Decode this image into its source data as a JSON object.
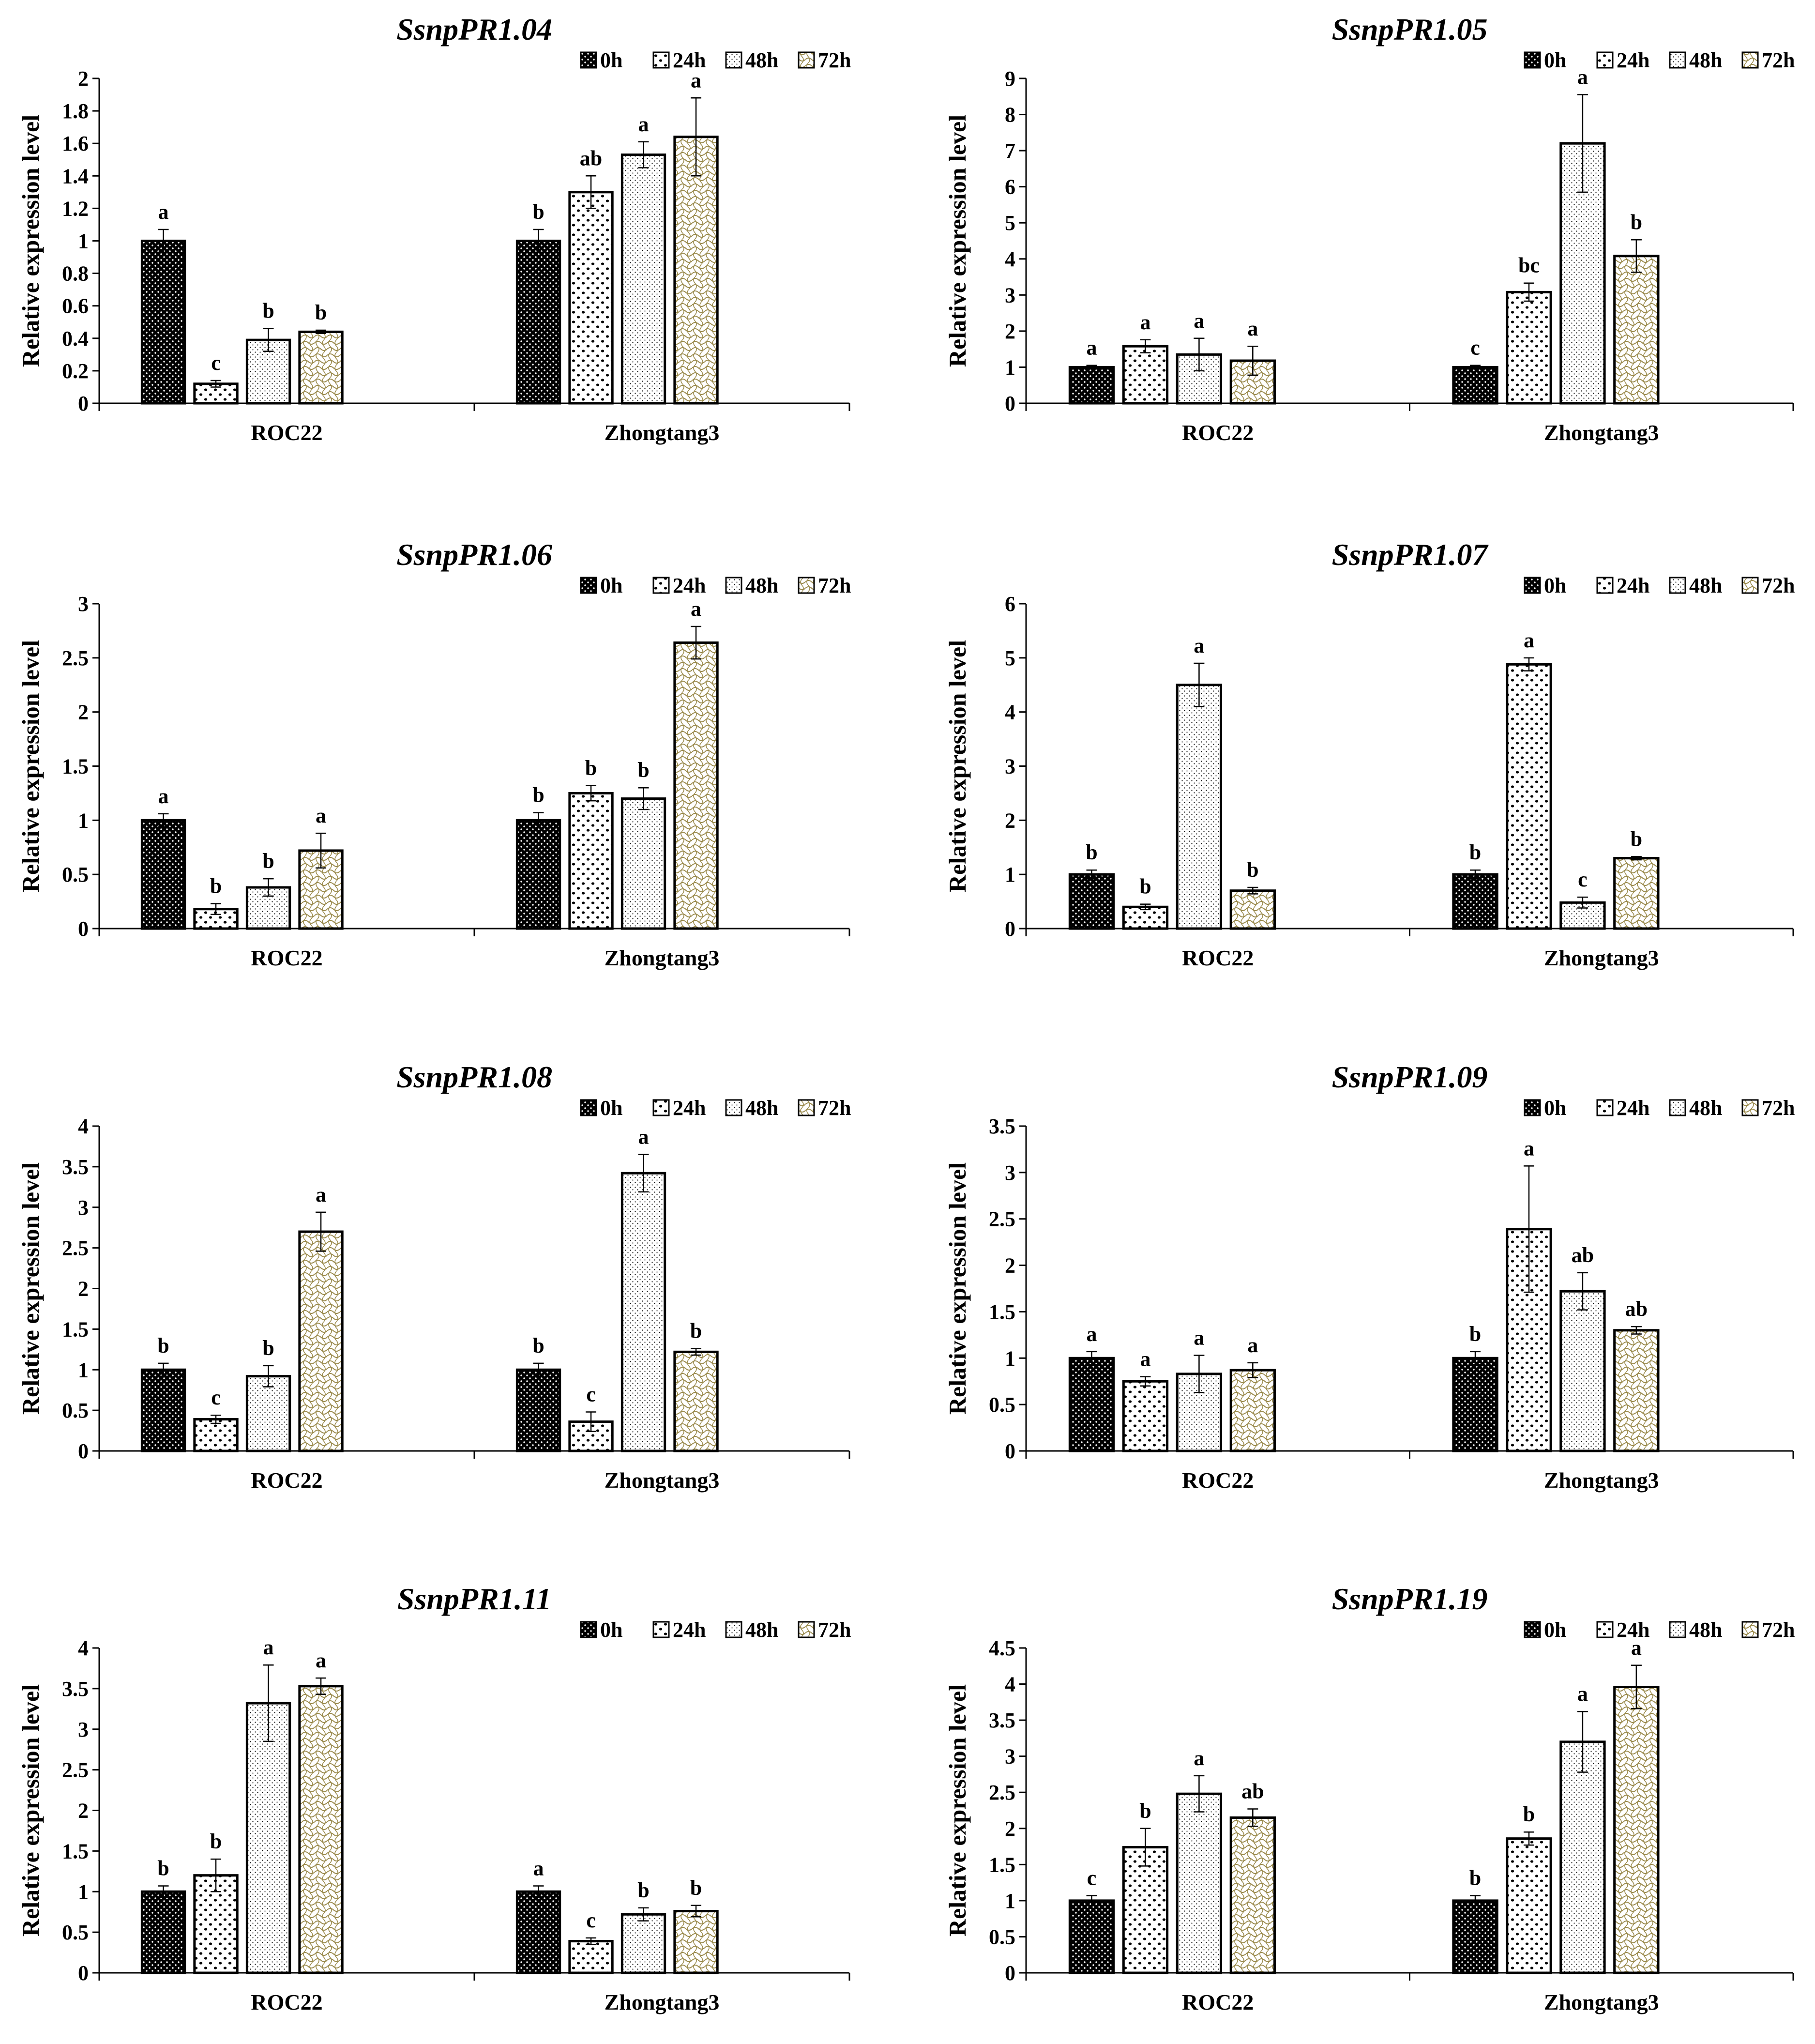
{
  "figure": {
    "series_names": [
      "0h",
      "24h",
      "48h",
      "72h"
    ],
    "patterns": [
      "dense-dots",
      "leopard-dots",
      "fine-dots",
      "wave-lattice"
    ],
    "colors": {
      "bar_outline": "#000000",
      "pattern_ink": "#000000",
      "wave_ink": "#9a8a4c",
      "background": "#ffffff"
    }
  },
  "chart_data": [
    {
      "type": "bar",
      "title": "SsnpPR1.04",
      "xlabel": "",
      "ylabel": "Relative expression level",
      "categories": [
        "ROC22",
        "Zhongtang3"
      ],
      "ylim": [
        0,
        2
      ],
      "yticks": [
        "0",
        "0.2",
        "0.4",
        "0.6",
        "0.8",
        "1",
        "1.2",
        "1.4",
        "1.6",
        "1.8",
        "2"
      ],
      "legend": "top-right",
      "series": [
        {
          "name": "0h",
          "values": [
            1.0,
            1.0
          ],
          "errors": [
            0.07,
            0.07
          ],
          "labels": [
            "a",
            "b"
          ]
        },
        {
          "name": "24h",
          "values": [
            0.12,
            1.3
          ],
          "errors": [
            0.02,
            0.1
          ],
          "labels": [
            "c",
            "ab"
          ]
        },
        {
          "name": "48h",
          "values": [
            0.39,
            1.53
          ],
          "errors": [
            0.07,
            0.08
          ],
          "labels": [
            "b",
            "a"
          ]
        },
        {
          "name": "72h",
          "values": [
            0.44,
            1.64
          ],
          "errors": [
            0.01,
            0.24
          ],
          "labels": [
            "b",
            "a"
          ]
        }
      ]
    },
    {
      "type": "bar",
      "title": "SsnpPR1.05",
      "xlabel": "",
      "ylabel": "Relative expression level",
      "categories": [
        "ROC22",
        "Zhongtang3"
      ],
      "ylim": [
        0,
        9
      ],
      "yticks": [
        "0",
        "1",
        "2",
        "3",
        "4",
        "5",
        "6",
        "7",
        "8",
        "9"
      ],
      "legend": "top-right",
      "series": [
        {
          "name": "0h",
          "values": [
            1.0,
            1.0
          ],
          "errors": [
            0.05,
            0.05
          ],
          "labels": [
            "a",
            "c"
          ]
        },
        {
          "name": "24h",
          "values": [
            1.58,
            3.08
          ],
          "errors": [
            0.18,
            0.25
          ],
          "labels": [
            "a",
            "bc"
          ]
        },
        {
          "name": "48h",
          "values": [
            1.35,
            7.2
          ],
          "errors": [
            0.45,
            1.35
          ],
          "labels": [
            "a",
            "a"
          ]
        },
        {
          "name": "72h",
          "values": [
            1.18,
            4.08
          ],
          "errors": [
            0.4,
            0.45
          ],
          "labels": [
            "a",
            "b"
          ]
        }
      ]
    },
    {
      "type": "bar",
      "title": "SsnpPR1.06",
      "xlabel": "",
      "ylabel": "Relative expression level",
      "categories": [
        "ROC22",
        "Zhongtang3"
      ],
      "ylim": [
        0,
        3
      ],
      "yticks": [
        "0",
        "0.5",
        "1",
        "1.5",
        "2",
        "2.5",
        "3"
      ],
      "legend": "top-right",
      "series": [
        {
          "name": "0h",
          "values": [
            1.0,
            1.0
          ],
          "errors": [
            0.06,
            0.07
          ],
          "labels": [
            "a",
            "b"
          ]
        },
        {
          "name": "24h",
          "values": [
            0.18,
            1.25
          ],
          "errors": [
            0.05,
            0.07
          ],
          "labels": [
            "b",
            "b"
          ]
        },
        {
          "name": "48h",
          "values": [
            0.38,
            1.2
          ],
          "errors": [
            0.08,
            0.1
          ],
          "labels": [
            "b",
            "b"
          ]
        },
        {
          "name": "72h",
          "values": [
            0.72,
            2.64
          ],
          "errors": [
            0.16,
            0.15
          ],
          "labels": [
            "a",
            "a"
          ]
        }
      ]
    },
    {
      "type": "bar",
      "title": "SsnpPR1.07",
      "xlabel": "",
      "ylabel": "Relative expression level",
      "categories": [
        "ROC22",
        "Zhongtang3"
      ],
      "ylim": [
        0,
        6
      ],
      "yticks": [
        "0",
        "1",
        "2",
        "3",
        "4",
        "5",
        "6"
      ],
      "legend": "top-right",
      "series": [
        {
          "name": "0h",
          "values": [
            1.0,
            1.0
          ],
          "errors": [
            0.08,
            0.08
          ],
          "labels": [
            "b",
            "b"
          ]
        },
        {
          "name": "24h",
          "values": [
            0.4,
            4.88
          ],
          "errors": [
            0.05,
            0.12
          ],
          "labels": [
            "b",
            "a"
          ]
        },
        {
          "name": "48h",
          "values": [
            4.5,
            0.48
          ],
          "errors": [
            0.4,
            0.1
          ],
          "labels": [
            "a",
            "c"
          ]
        },
        {
          "name": "72h",
          "values": [
            0.7,
            1.3
          ],
          "errors": [
            0.06,
            0.03
          ],
          "labels": [
            "b",
            "b"
          ]
        }
      ]
    },
    {
      "type": "bar",
      "title": "SsnpPR1.08",
      "xlabel": "",
      "ylabel": "Relative expression level",
      "categories": [
        "ROC22",
        "Zhongtang3"
      ],
      "ylim": [
        0,
        4
      ],
      "yticks": [
        "0",
        "0.5",
        "1",
        "1.5",
        "2",
        "2.5",
        "3",
        "3.5",
        "4"
      ],
      "legend": "top-right",
      "series": [
        {
          "name": "0h",
          "values": [
            1.0,
            1.0
          ],
          "errors": [
            0.08,
            0.08
          ],
          "labels": [
            "b",
            "b"
          ]
        },
        {
          "name": "24h",
          "values": [
            0.39,
            0.36
          ],
          "errors": [
            0.05,
            0.12
          ],
          "labels": [
            "c",
            "c"
          ]
        },
        {
          "name": "48h",
          "values": [
            0.92,
            3.42
          ],
          "errors": [
            0.13,
            0.23
          ],
          "labels": [
            "b",
            "a"
          ]
        },
        {
          "name": "72h",
          "values": [
            2.7,
            1.22
          ],
          "errors": [
            0.24,
            0.04
          ],
          "labels": [
            "a",
            "b"
          ]
        }
      ]
    },
    {
      "type": "bar",
      "title": "SsnpPR1.09",
      "xlabel": "",
      "ylabel": "Relative expression level",
      "categories": [
        "ROC22",
        "Zhongtang3"
      ],
      "ylim": [
        0,
        3.5
      ],
      "yticks": [
        "0",
        "0.5",
        "1",
        "1.5",
        "2",
        "2.5",
        "3",
        "3.5"
      ],
      "legend": "top-right",
      "series": [
        {
          "name": "0h",
          "values": [
            1.0,
            1.0
          ],
          "errors": [
            0.07,
            0.07
          ],
          "labels": [
            "a",
            "b"
          ]
        },
        {
          "name": "24h",
          "values": [
            0.75,
            2.39
          ],
          "errors": [
            0.05,
            0.68
          ],
          "labels": [
            "a",
            "a"
          ]
        },
        {
          "name": "48h",
          "values": [
            0.83,
            1.72
          ],
          "errors": [
            0.2,
            0.2
          ],
          "labels": [
            "a",
            "ab"
          ]
        },
        {
          "name": "72h",
          "values": [
            0.87,
            1.3
          ],
          "errors": [
            0.08,
            0.04
          ],
          "labels": [
            "a",
            "ab"
          ]
        }
      ]
    },
    {
      "type": "bar",
      "title": "SsnpPR1.11",
      "xlabel": "",
      "ylabel": "Relative expression level",
      "categories": [
        "ROC22",
        "Zhongtang3"
      ],
      "ylim": [
        0,
        4
      ],
      "yticks": [
        "0",
        "0.5",
        "1",
        "1.5",
        "2",
        "2.5",
        "3",
        "3.5",
        "4"
      ],
      "legend": "top-right",
      "series": [
        {
          "name": "0h",
          "values": [
            1.0,
            1.0
          ],
          "errors": [
            0.07,
            0.07
          ],
          "labels": [
            "b",
            "a"
          ]
        },
        {
          "name": "24h",
          "values": [
            1.2,
            0.39
          ],
          "errors": [
            0.2,
            0.04
          ],
          "labels": [
            "b",
            "c"
          ]
        },
        {
          "name": "48h",
          "values": [
            3.32,
            0.72
          ],
          "errors": [
            0.47,
            0.08
          ],
          "labels": [
            "a",
            "b"
          ]
        },
        {
          "name": "72h",
          "values": [
            3.53,
            0.76
          ],
          "errors": [
            0.1,
            0.07
          ],
          "labels": [
            "a",
            "b"
          ]
        }
      ]
    },
    {
      "type": "bar",
      "title": "SsnpPR1.19",
      "xlabel": "",
      "ylabel": "Relative expression level",
      "categories": [
        "ROC22",
        "Zhongtang3"
      ],
      "ylim": [
        0,
        4.5
      ],
      "yticks": [
        "0",
        "0.5",
        "1",
        "1.5",
        "2",
        "2.5",
        "3",
        "3.5",
        "4",
        "4.5"
      ],
      "legend": "top-right",
      "series": [
        {
          "name": "0h",
          "values": [
            1.0,
            1.0
          ],
          "errors": [
            0.07,
            0.07
          ],
          "labels": [
            "c",
            "b"
          ]
        },
        {
          "name": "24h",
          "values": [
            1.74,
            1.86
          ],
          "errors": [
            0.26,
            0.09
          ],
          "labels": [
            "b",
            "b"
          ]
        },
        {
          "name": "48h",
          "values": [
            2.48,
            3.2
          ],
          "errors": [
            0.25,
            0.42
          ],
          "labels": [
            "a",
            "a"
          ]
        },
        {
          "name": "72h",
          "values": [
            2.15,
            3.96
          ],
          "errors": [
            0.12,
            0.3
          ],
          "labels": [
            "ab",
            "a"
          ]
        }
      ]
    }
  ]
}
